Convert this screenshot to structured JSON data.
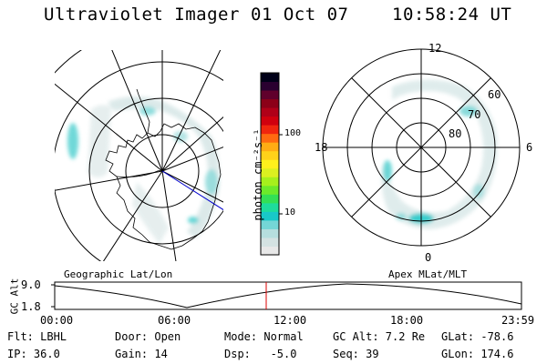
{
  "header": {
    "title": "Ultraviolet Imager",
    "date": "01 Oct 07",
    "time": "10:58:24 UT"
  },
  "colorbar": {
    "unit_label": "photon cm⁻²s⁻¹",
    "ticks": [
      "100",
      "10"
    ],
    "colors": [
      "#e8e8e8",
      "#d4e2e2",
      "#b6dede",
      "#74d6d6",
      "#19c8c8",
      "#1edc9c",
      "#33e055",
      "#6cea2a",
      "#a6f01c",
      "#dcf020",
      "#fff01c",
      "#ffd21a",
      "#ffac14",
      "#ff6a10",
      "#f0260e",
      "#d0000e",
      "#b00018",
      "#8c0018",
      "#60002c",
      "#2a0030",
      "#000018"
    ]
  },
  "geo_map": {
    "caption": "Geographic Lat/Lon"
  },
  "polar_plot": {
    "caption": "Apex MLat/MLT",
    "mlt_labels": {
      "top": "12",
      "bottom": "0",
      "left": "18",
      "right": "6"
    },
    "lat_labels": [
      "60",
      "70",
      "80"
    ]
  },
  "gc_alt_plot": {
    "ylabel": "GC Alt",
    "y_ticks": [
      "9.0",
      "1.8"
    ],
    "x_ticks": [
      "00:00",
      "06:00",
      "12:00",
      "18:00",
      "23:59"
    ],
    "marker_color": "#dd0000"
  },
  "info": {
    "row1": {
      "filter": "Flt: LBHL",
      "door": "Door: Open",
      "mode": "Mode: Normal",
      "gc_alt": "GC Alt: 7.2 Re",
      "glat": "GLat: -78.6"
    },
    "row2": {
      "ip": "IP: 36.0",
      "gain": "Gain: 14",
      "dsp": "Dsp:   -5.0",
      "seq": "Seq: 39",
      "glon": "GLon: 174.6"
    }
  }
}
